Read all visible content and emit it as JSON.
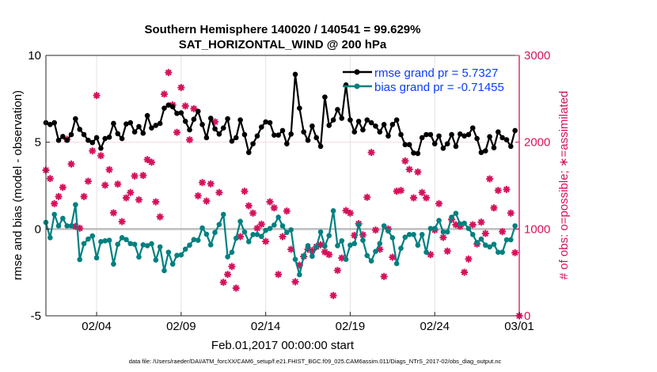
{
  "chart_data": {
    "type": "line",
    "title": "Southern Hemisphere 140020 / 140541 = 99.629%",
    "subtitle": "SAT_HORIZONTAL_WIND @ 200 hPa",
    "xlabel": "Feb.01,2017 00:00:00 start",
    "ylabel": "rmse and bias (model - observation)",
    "y2label": "# of obs: o=possible; ∗=assimilated",
    "footnote": "data file: /Users/raeder/DAI/ATM_forcXX/CAM6_setup/f.e21.FHIST_BGC.f09_025.CAM6assim.011/Diags_NTrS_2017-02/obs_diag_output.nc",
    "x_unit": "days since Feb.01,2017 00:00:00",
    "xlim": [
      0,
      28
    ],
    "x_ticks": [
      3,
      8,
      13,
      18,
      23,
      28
    ],
    "x_tick_labels": [
      "02/04",
      "02/09",
      "02/14",
      "02/19",
      "02/24",
      "03/01"
    ],
    "ylim": [
      -5,
      10
    ],
    "y_ticks": [
      "-5",
      "0",
      "5",
      "10"
    ],
    "y2lim": [
      0,
      3000
    ],
    "y2_ticks": [
      "0",
      "1000",
      "2000",
      "3000"
    ],
    "time_step_days": 0.25,
    "grid": "vertical",
    "legend_placement": "top-right",
    "colors": {
      "rmse": "#000000",
      "bias": "#008080",
      "obs": "#d6115b",
      "legend_text": "#0a3cff",
      "zero_line": "#bdbdbd"
    },
    "series": [
      {
        "name": "rmse grand pr = 5.7327",
        "axis": "left",
        "values": [
          6.12,
          6.02,
          6.12,
          5.11,
          5.33,
          5.11,
          5.44,
          6.35,
          5.74,
          5.44,
          5.11,
          4.98,
          5.26,
          4.65,
          5.21,
          5.29,
          6.08,
          5.49,
          5.21,
          6.05,
          6.12,
          5.59,
          5.9,
          5.52,
          6.53,
          5.82,
          5.97,
          6.08,
          6.96,
          7.14,
          7.04,
          6.66,
          6.69,
          6.2,
          5.71,
          6.32,
          6.78,
          6.02,
          5.26,
          6.38,
          5.77,
          5.47,
          5.82,
          6.35,
          5.06,
          5.26,
          6.28,
          5.44,
          4.41,
          4.91,
          5.36,
          5.87,
          6.17,
          6.12,
          5.41,
          5.41,
          5.67,
          4.91,
          5.47,
          8.91,
          6.96,
          5.59,
          5.11,
          5.93,
          5.26,
          4.76,
          7.6,
          5.97,
          6.28,
          6.88,
          6.38,
          8.3,
          6.28,
          5.59,
          6.2,
          5.71,
          6.28,
          6.12,
          5.93,
          5.59,
          6.02,
          5.36,
          6.02,
          6.28,
          5.44,
          4.86,
          4.86,
          4.38,
          4.35,
          5.26,
          5.44,
          5.44,
          4.91,
          5.36,
          4.65,
          4.91,
          5.44,
          4.76,
          5.47,
          5.36,
          5.44,
          5.82,
          5.21,
          4.41,
          4.5,
          5.32,
          4.68,
          5.59,
          5.26,
          5.14,
          4.76,
          5.67
        ]
      },
      {
        "name": "bias grand pr = -0.71455",
        "axis": "left",
        "values": [
          0.38,
          -0.5,
          0.84,
          0.18,
          0.61,
          0.18,
          0.18,
          1.4,
          -1.76,
          -0.84,
          -0.58,
          -0.4,
          -1.66,
          -0.73,
          -0.68,
          -0.65,
          -2.02,
          -0.88,
          -0.5,
          -0.61,
          -0.84,
          -0.88,
          -1.61,
          -0.91,
          -0.96,
          -0.85,
          -1.79,
          -1.03,
          -2.4,
          -1.34,
          -2.02,
          -1.52,
          -1.49,
          -1.16,
          -0.93,
          -0.61,
          -0.65,
          0.06,
          -0.3,
          -0.91,
          -0.2,
          0.26,
          0.84,
          -1.6,
          -1.34,
          -0.53,
          0.44,
          -0.17,
          -0.73,
          -0.32,
          -0.32,
          -0.43,
          -0.08,
          0.03,
          0.23,
          0.68,
          0.18,
          -0.2,
          -0.05,
          -1.75,
          -2.63,
          -1.57,
          -0.96,
          -1.57,
          -1.03,
          -0.17,
          -0.99,
          -0.38,
          1.05,
          -0.96,
          -0.68,
          -1.75,
          -0.93,
          -0.84,
          0.26,
          -0.65,
          -1.53,
          -1.84,
          -1.29,
          -0.84,
          0.18,
          -0.12,
          -0.5,
          -1.99,
          -1.11,
          -0.47,
          -0.32,
          -0.32,
          -0.93,
          -0.32,
          -1.34,
          0.03,
          0.03,
          0.49,
          -0.17,
          -0.17,
          0.68,
          0.9,
          0.29,
          0.33,
          0.03,
          -0.32,
          -0.78,
          -0.58,
          -0.93,
          -1.03,
          -0.88,
          -1.34,
          -1.34,
          -0.62,
          -0.62,
          0.18
        ]
      },
      {
        "axis": "right",
        "marker": "asterisk",
        "values": [
          1678,
          1581,
          1292,
          1374,
          1480,
          2034,
          1748,
          1030,
          1009,
          1374,
          1550,
          1900,
          2538,
          1845,
          1505,
          1684,
          1186,
          1517,
          1085,
          1359,
          1420,
          1611,
          1337,
          1617,
          1800,
          1769,
          1313,
          1140,
          2554,
          2803,
          2429,
          2113,
          2630,
          2417,
          2028,
          2386,
          1383,
          1535,
          1322,
          1520,
          2234,
          1420,
          386,
          477,
          568,
          319,
          912,
          1435,
          1268,
          1183,
          1009,
          1055,
          857,
          1313,
          1243,
          477,
          912,
          1207,
          766,
          392,
          584,
          684,
          766,
          751,
          796,
          818,
          736,
          705,
          234,
          523,
          666,
          1213,
          1183,
          927,
          1061,
          933,
          1365,
          1882,
          988,
          766,
          453,
          1000,
          675,
          1435,
          1444,
          1784,
          1687,
          1359,
          1657,
          1420,
          1359,
          705,
          988,
          1292,
          903,
          745,
          1110,
          1049,
          1031,
          502,
          654,
          1049,
          827,
          1079,
          948,
          1578,
          1243,
          1444,
          970,
          1456,
          1183,
          727,
          0
        ]
      }
    ]
  }
}
